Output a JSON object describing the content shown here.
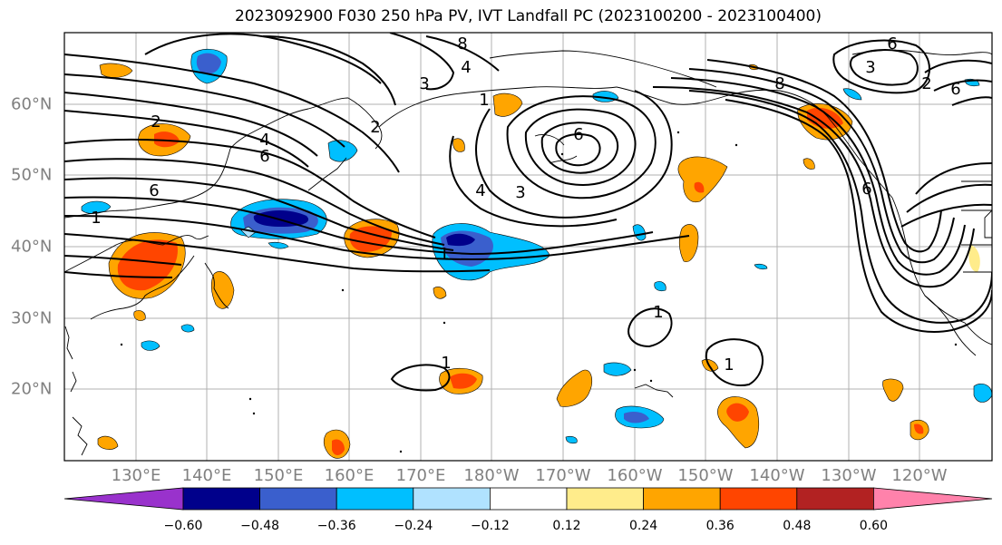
{
  "title": "2023092900 F030 250 hPa PV, IVT Landfall PC (2023100200 - 2023100400)",
  "longitude_labels": [
    "130°E",
    "140°E",
    "150°E",
    "160°E",
    "170°E",
    "180°W",
    "170°W",
    "160°W",
    "150°W",
    "140°W",
    "130°W",
    "120°W"
  ],
  "latitude_labels": [
    "60°N",
    "50°N",
    "40°N",
    "30°N",
    "20°N"
  ],
  "colorbar": {
    "tick_labels": [
      "−0.60",
      "−0.48",
      "−0.36",
      "−0.24",
      "−0.12",
      "0.12",
      "0.24",
      "0.36",
      "0.48",
      "0.60"
    ],
    "colors": [
      "#9932CC",
      "#00008B",
      "#3A5FCD",
      "#00BFFF",
      "#B0E2FF",
      "#FFFFFF",
      "#FFEC8B",
      "#FFA500",
      "#FF4500",
      "#B22222",
      "#FF82AB"
    ],
    "extend": "both"
  },
  "contour_labels": [
    "2",
    "4",
    "6",
    "6",
    "1",
    "1",
    "1",
    "1",
    "2",
    "3",
    "4",
    "6",
    "3",
    "4",
    "6",
    "8",
    "6",
    "3",
    "2",
    "1",
    "8",
    "1",
    "6"
  ],
  "colors": {
    "contour": "#000000",
    "coastline": "#000000",
    "grid": "#b0b0b0",
    "tick_label": "#808080"
  }
}
